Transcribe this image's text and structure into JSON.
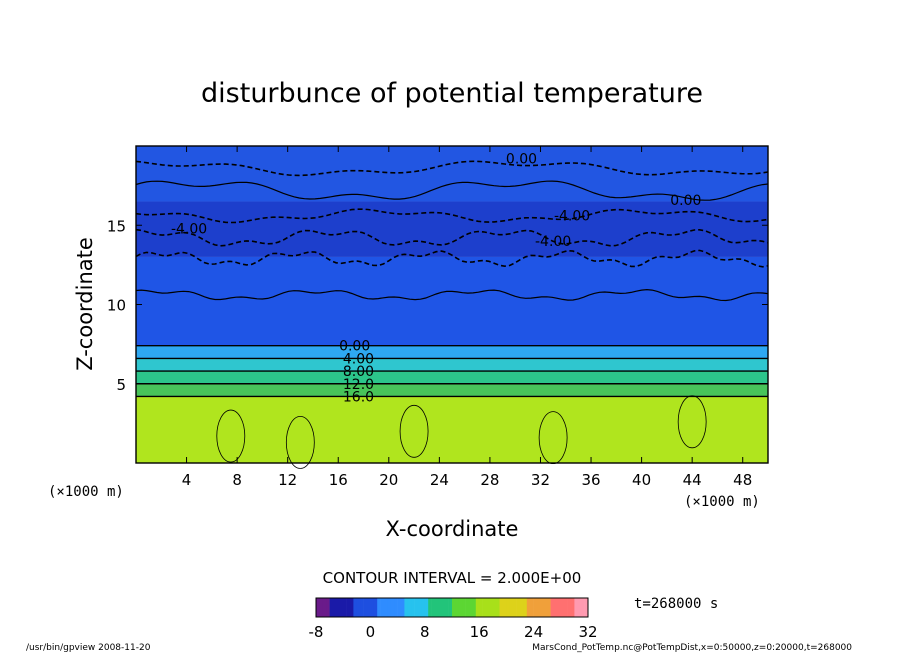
{
  "chart_data": {
    "type": "heatmap",
    "title": "disturbunce of potential temperature",
    "xlabel": "X-coordinate",
    "ylabel": "Z-coordinate",
    "x_unit": "(×1000 m)",
    "x_unit_right": "(×1000 m)",
    "xlim": [
      0,
      50
    ],
    "ylim": [
      0,
      20
    ],
    "x_ticks": [
      "4",
      "8",
      "12",
      "16",
      "20",
      "24",
      "28",
      "32",
      "36",
      "40",
      "44",
      "48"
    ],
    "y_ticks": [
      "5",
      "10",
      "15"
    ],
    "contour_interval_text": "CONTOUR INTERVAL = 2.000E+00",
    "time_text": "t=268000 s",
    "colorbar": {
      "min": -8,
      "max": 32,
      "ticks": [
        "-8",
        "0",
        "8",
        "16",
        "24",
        "32"
      ],
      "colors": [
        "#6a1b8a",
        "#1a1aa8",
        "#1e4fe0",
        "#2f8cff",
        "#27c2ee",
        "#22c47a",
        "#5cd633",
        "#a8e01a",
        "#ddd21a",
        "#f0a03a",
        "#ff7070",
        "#ff9ab0"
      ]
    },
    "bands": [
      {
        "z_min": 0,
        "z_max": 4.2,
        "value": 20,
        "color": "#b0e51e"
      },
      {
        "z_min": 4.2,
        "z_max": 5.0,
        "value": 16,
        "color": "#48c45a"
      },
      {
        "z_min": 5.0,
        "z_max": 5.8,
        "value": 12,
        "color": "#2cc58b"
      },
      {
        "z_min": 5.8,
        "z_max": 6.6,
        "value": 8,
        "color": "#2fc6cf"
      },
      {
        "z_min": 6.6,
        "z_max": 7.4,
        "value": 4,
        "color": "#2ea8f2"
      },
      {
        "z_min": 7.4,
        "z_max": 13.0,
        "value": -2,
        "color": "#1f55e6"
      },
      {
        "z_min": 13.0,
        "z_max": 16.5,
        "value": -5,
        "color": "#1d3fcc"
      },
      {
        "z_min": 16.5,
        "z_max": 20.0,
        "value": -2,
        "color": "#2256e2"
      }
    ],
    "contour_labels": [
      {
        "x": 30.5,
        "z": 19.2,
        "text": "0.00"
      },
      {
        "x": 43.5,
        "z": 16.6,
        "text": "0.00"
      },
      {
        "x": 34.5,
        "z": 15.6,
        "text": "-4.00"
      },
      {
        "x": 4.2,
        "z": 14.8,
        "text": "-4.00"
      },
      {
        "x": 33.0,
        "z": 14.0,
        "text": "-4.00"
      },
      {
        "x": 17.3,
        "z": 7.4,
        "text": "0.00"
      },
      {
        "x": 17.6,
        "z": 6.6,
        "text": "4.00"
      },
      {
        "x": 17.6,
        "z": 5.8,
        "text": "8.00"
      },
      {
        "x": 17.6,
        "z": 5.0,
        "text": "12.0"
      },
      {
        "x": 17.6,
        "z": 4.2,
        "text": "16.0"
      }
    ]
  },
  "footer": {
    "left": "/usr/bin/gpview   2008-11-20",
    "right": "MarsCond_PotTemp.nc@PotTempDist,x=0:50000,z=0:20000,t=268000"
  }
}
